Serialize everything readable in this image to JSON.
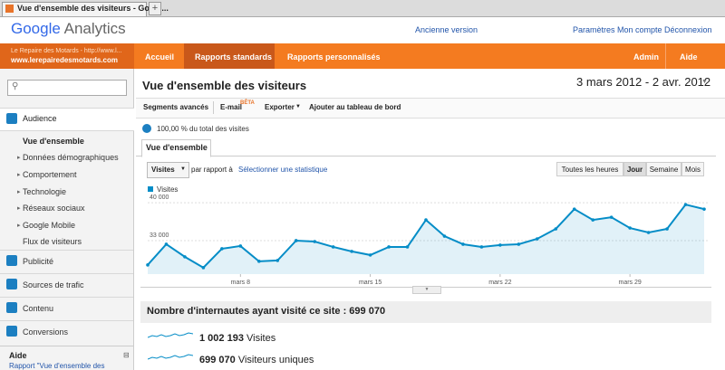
{
  "browser": {
    "tab_title": "Vue d'ensemble des visiteurs - Googl..."
  },
  "header": {
    "logo_google": "Google",
    "logo_analytics": "Analytics",
    "links": [
      "Ancienne version",
      "Paramètres",
      "Mon compte",
      "Déconnexion"
    ]
  },
  "account": {
    "name": "Le Repaire des Motards - http://www.l...",
    "site": "www.lerepairedesmotards.com"
  },
  "nav": {
    "tabs": [
      "Accueil",
      "Rapports standards",
      "Rapports personnalisés"
    ],
    "right": [
      "Admin",
      "Aide"
    ]
  },
  "sidebar": {
    "audience": "Audience",
    "items": [
      "Vue d'ensemble",
      "Données démographiques",
      "Comportement",
      "Technologie",
      "Réseaux sociaux",
      "Google Mobile",
      "Flux de visiteurs"
    ],
    "sections": [
      "Publicité",
      "Sources de trafic",
      "Contenu",
      "Conversions"
    ],
    "help_title": "Aide",
    "help_link": "Rapport \"Vue d'ensemble des"
  },
  "report": {
    "title": "Vue d'ensemble des visiteurs",
    "date_range": "3 mars 2012 - 2 avr. 2012",
    "toolbar": [
      "Segments avancés",
      "E-mail",
      "Exporter",
      "Ajouter au tableau de bord"
    ],
    "beta": "BÊTA",
    "segment": "100,00 % du total des visites",
    "tab": "Vue d'ensemble",
    "metric": "Visites",
    "compare": "par rapport à",
    "select": "Sélectionner une statistique",
    "granularity": [
      "Toutes les heures",
      "Jour",
      "Semaine",
      "Mois"
    ]
  },
  "chart_data": {
    "type": "line",
    "categories": [
      null,
      null,
      null,
      null,
      null,
      "mars 8",
      null,
      null,
      null,
      null,
      null,
      null,
      "mars 15",
      null,
      null,
      null,
      null,
      null,
      null,
      "mars 22",
      null,
      null,
      null,
      null,
      null,
      null,
      "mars 29",
      null,
      null,
      null,
      null
    ],
    "series": [
      {
        "name": "Visites",
        "color": "#058dc7",
        "values": [
          28500,
          32330,
          30000,
          28000,
          31500,
          32000,
          29170,
          29330,
          33000,
          32830,
          31830,
          31000,
          30330,
          31830,
          31830,
          36830,
          33830,
          32330,
          31830,
          32170,
          32330,
          33330,
          35170,
          38830,
          36830,
          37330,
          35330,
          34500,
          35170,
          39670,
          38830
        ]
      }
    ],
    "ylim": [
      26800,
      41200
    ],
    "yticks": [
      {
        "value": 33000,
        "label": "33 000"
      },
      {
        "value": 40000,
        "label": "40 000"
      }
    ],
    "grid": true
  },
  "summary": {
    "heading": "Nombre d'internautes ayant visité ce site : 699 070",
    "metrics": [
      {
        "value": "1 002 193",
        "label": "Visites"
      },
      {
        "value": "699 070",
        "label": "Visiteurs uniques"
      }
    ]
  }
}
